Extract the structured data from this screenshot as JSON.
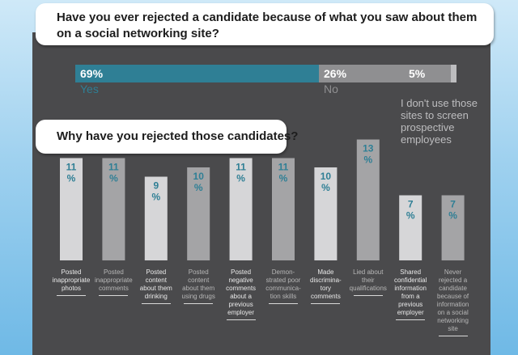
{
  "questions": {
    "q1": "Have you ever rejected a candidate because of what you saw about them on a social networking site?",
    "q2": "Why have you rejected those candidates?"
  },
  "colors": {
    "yes": "#2f7f95",
    "no": "#8f8f91",
    "other": "#bdbdbf",
    "bar_light": "#d6d6d8",
    "bar_dark": "#a4a4a6",
    "pct_text": "#2f7f95",
    "panel": "#4a4a4c"
  },
  "chart_data": [
    {
      "type": "bar",
      "orientation": "horizontal-stacked",
      "series": [
        {
          "name": "Yes",
          "value": 69,
          "label": "69%"
        },
        {
          "name": "No",
          "value": 26,
          "label": "26%"
        },
        {
          "name": "I don't use those sites to screen prospective employees",
          "value": 5,
          "label": "5%"
        }
      ]
    },
    {
      "type": "bar",
      "ylim": [
        0,
        20
      ],
      "categories": [
        "Posted inappropriate photos",
        "Posted inappropriate comments",
        "Posted content about them drinking",
        "Posted content about them using drugs",
        "Posted negative comments about a previous employer",
        "Demon- strated poor communica- tion skills",
        "Made discrimina- tory comments",
        "Lied about their qualifications",
        "Shared confidential information from a previous employer",
        "Never rejected a candidate because of information on a social networking site"
      ],
      "values": [
        11,
        11,
        9,
        10,
        11,
        11,
        10,
        13,
        7,
        7
      ],
      "value_labels_line1": [
        "11",
        "11",
        "9",
        "10",
        "11",
        "11",
        "10",
        "13",
        "7",
        "7"
      ],
      "value_labels_line2": [
        "%",
        "%",
        "%",
        "%",
        "%",
        "%",
        "%",
        "%",
        "%",
        "%"
      ],
      "label_lines": [
        [
          "Posted",
          "inappropriate",
          "photos"
        ],
        [
          "Posted",
          "inappropriate comments"
        ],
        [
          "Posted",
          "content",
          "about them",
          "drinking"
        ],
        [
          "Posted",
          "content",
          "about them",
          "using drugs"
        ],
        [
          "Posted",
          "negative",
          "comments",
          "about a",
          "previous",
          "employer"
        ],
        [
          "Demon-",
          "strated poor",
          "communica-",
          "tion skills"
        ],
        [
          "Made",
          "discrimina-",
          "tory",
          "comments"
        ],
        [
          "Lied about",
          "their",
          "qualifications"
        ],
        [
          "Shared",
          "confidential",
          "information",
          "from a",
          "previous",
          "employer"
        ],
        [
          "Never",
          "rejected a",
          "candidate",
          "because of",
          "information",
          "on a social",
          "networking",
          "site"
        ]
      ]
    }
  ]
}
